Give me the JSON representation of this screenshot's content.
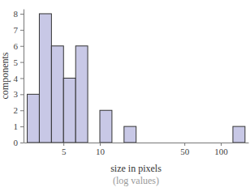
{
  "chart_data": {
    "type": "histogram",
    "xlabel": "size in pixels",
    "annotations": [
      "(log values)"
    ],
    "ylabel": "components",
    "bins": [
      2.51,
      3.16,
      3.98,
      5.01,
      6.31,
      7.94,
      10,
      12.59,
      15.85,
      19.95,
      25.12,
      31.62,
      39.81,
      50.12,
      63.1,
      79.43,
      100,
      125.89,
      158.49
    ],
    "values": [
      3,
      8,
      6,
      4,
      6,
      0,
      2,
      0,
      1,
      0,
      0,
      0,
      0,
      0,
      0,
      0,
      0,
      1
    ],
    "color": "#c8c8e6",
    "log": "x",
    "xlim": [
      2.34,
      169
    ],
    "xticks": [
      5,
      10,
      50,
      100
    ],
    "ylim": [
      0,
      8.3
    ],
    "yticks": [
      0,
      1,
      2,
      3,
      4,
      5,
      6,
      7,
      8
    ],
    "grid": false
  }
}
